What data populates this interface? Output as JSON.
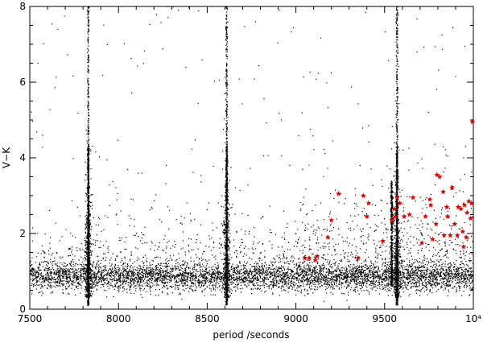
{
  "chart_data": {
    "type": "scatter",
    "xlabel": "period /seconds",
    "ylabel": "V−K",
    "xlim": [
      7500,
      10000
    ],
    "ylim": [
      0,
      8
    ],
    "x_tick_labels": [
      "7500",
      "8000",
      "8500",
      "9000",
      "9500",
      "10⁴"
    ],
    "x_tick_values": [
      7500,
      8000,
      8500,
      9000,
      9500,
      10000
    ],
    "y_tick_labels": [
      "0",
      "2",
      "4",
      "6",
      "8"
    ],
    "y_tick_values": [
      0,
      2,
      4,
      6,
      8
    ],
    "spike_periods": [
      7830,
      8610,
      9570
    ],
    "series": [
      {
        "marker": "dot",
        "color": "#000000",
        "points_summary": "dense field of small black dots concentrated near V-K 0.5-1.5 with vertical spikes at the spike periods",
        "points": []
      },
      {
        "marker": "star",
        "color": "#e00000",
        "points": [
          [
            9050,
            1.35
          ],
          [
            9075,
            1.35
          ],
          [
            9110,
            1.3
          ],
          [
            9120,
            1.4
          ],
          [
            9180,
            1.9
          ],
          [
            9200,
            2.35
          ],
          [
            9240,
            3.05
          ],
          [
            9350,
            1.35
          ],
          [
            9380,
            3.0
          ],
          [
            9400,
            2.45
          ],
          [
            9410,
            2.8
          ],
          [
            9490,
            1.8
          ],
          [
            9540,
            2.35
          ],
          [
            9555,
            2.65
          ],
          [
            9560,
            2.45
          ],
          [
            9570,
            2.95
          ],
          [
            9585,
            2.8
          ],
          [
            9610,
            2.45
          ],
          [
            9640,
            2.5
          ],
          [
            9660,
            2.95
          ],
          [
            9710,
            1.75
          ],
          [
            9730,
            2.45
          ],
          [
            9755,
            2.9
          ],
          [
            9770,
            1.85
          ],
          [
            9790,
            2.25
          ],
          [
            9795,
            3.55
          ],
          [
            9810,
            3.5
          ],
          [
            9830,
            3.1
          ],
          [
            9835,
            1.95
          ],
          [
            9850,
            2.7
          ],
          [
            9855,
            2.45
          ],
          [
            9870,
            1.95
          ],
          [
            9880,
            3.2
          ],
          [
            9895,
            2.25
          ],
          [
            9910,
            1.95
          ],
          [
            9915,
            2.7
          ],
          [
            9930,
            2.65
          ],
          [
            9940,
            2.05
          ],
          [
            9945,
            1.65
          ],
          [
            9950,
            2.75
          ],
          [
            9960,
            1.9
          ],
          [
            9965,
            2.55
          ],
          [
            9975,
            2.85
          ],
          [
            9985,
            2.4
          ],
          [
            9990,
            2.8
          ],
          [
            9995,
            4.95
          ],
          [
            9760,
            2.75
          ]
        ]
      }
    ],
    "grid": false,
    "legend": "none"
  }
}
